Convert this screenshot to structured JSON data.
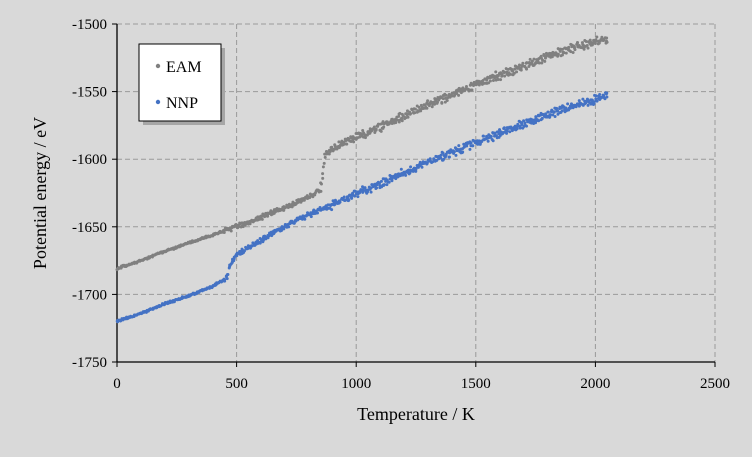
{
  "chart_data": {
    "type": "scatter",
    "title": "",
    "xlabel": "Temperature / K",
    "ylabel": "Potential energy / eV",
    "xlim": [
      0,
      2500
    ],
    "ylim": [
      -1750,
      -1500
    ],
    "xticks": [
      0,
      500,
      1000,
      1500,
      2000,
      2500
    ],
    "yticks": [
      -1750,
      -1700,
      -1650,
      -1600,
      -1550,
      -1500
    ],
    "grid": true,
    "legend_position": "top-left",
    "series": [
      {
        "name": "EAM",
        "color": "#808080",
        "x": [
          0,
          100,
          200,
          300,
          400,
          500,
          600,
          700,
          800,
          850,
          860,
          870,
          900,
          1000,
          1100,
          1200,
          1300,
          1400,
          1500,
          1600,
          1700,
          1800,
          1900,
          2000,
          2050
        ],
        "y": [
          -1681,
          -1675,
          -1668,
          -1662,
          -1656,
          -1650,
          -1643,
          -1636,
          -1628,
          -1623,
          -1610,
          -1597,
          -1592,
          -1584,
          -1576,
          -1568,
          -1560,
          -1552,
          -1545,
          -1538,
          -1531,
          -1524,
          -1518,
          -1513,
          -1512
        ]
      },
      {
        "name": "NNP",
        "color": "#4472c4",
        "x": [
          0,
          100,
          200,
          300,
          400,
          460,
          470,
          480,
          500,
          600,
          700,
          800,
          900,
          1000,
          1100,
          1200,
          1300,
          1400,
          1500,
          1600,
          1700,
          1800,
          1900,
          2000,
          2050
        ],
        "y": [
          -1720,
          -1714,
          -1707,
          -1701,
          -1694,
          -1688,
          -1680,
          -1676,
          -1671,
          -1660,
          -1650,
          -1641,
          -1634,
          -1626,
          -1618,
          -1610,
          -1602,
          -1595,
          -1588,
          -1581,
          -1574,
          -1567,
          -1561,
          -1556,
          -1553
        ]
      }
    ]
  }
}
